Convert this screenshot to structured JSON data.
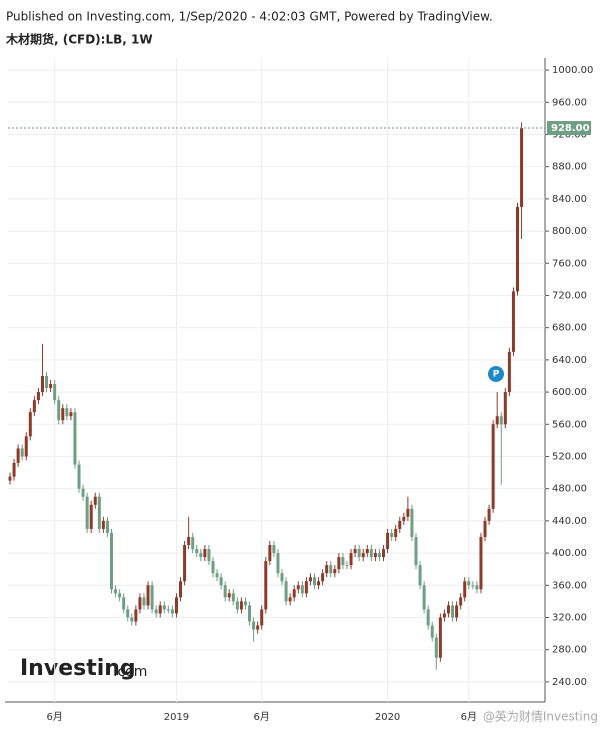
{
  "header": {
    "published": "Published on Investing.com, 1/Sep/2020 - 4:02:03 GMT, Powered by TradingView.",
    "symbol": "木材期货, (CFD):LB, 1W"
  },
  "chart_data": {
    "type": "candlestick",
    "categories": [
      null,
      null,
      null,
      null,
      null,
      null,
      null,
      null,
      null,
      null,
      null,
      "6月",
      null,
      null,
      null,
      null,
      null,
      null,
      null,
      null,
      null,
      null,
      null,
      null,
      null,
      null,
      null,
      null,
      null,
      null,
      null,
      null,
      null,
      null,
      null,
      null,
      null,
      null,
      null,
      null,
      null,
      "2019",
      null,
      null,
      null,
      null,
      null,
      null,
      null,
      null,
      null,
      null,
      null,
      null,
      null,
      null,
      null,
      null,
      null,
      null,
      null,
      null,
      "6月",
      null,
      null,
      null,
      null,
      null,
      null,
      null,
      null,
      null,
      null,
      null,
      null,
      null,
      null,
      null,
      null,
      null,
      null,
      null,
      null,
      null,
      null,
      null,
      null,
      null,
      null,
      null,
      null,
      null,
      null,
      "2020",
      null,
      null,
      null,
      null,
      null,
      null,
      null,
      null,
      null,
      null,
      null,
      null,
      null,
      null,
      null,
      null,
      null,
      null,
      null,
      "6月",
      null,
      null,
      null,
      null,
      null,
      null,
      null,
      null,
      null,
      null,
      null,
      null,
      null
    ],
    "open": [
      490,
      495,
      512,
      530,
      520,
      545,
      575,
      590,
      600,
      620,
      605,
      610,
      590,
      565,
      580,
      570,
      575,
      510,
      480,
      470,
      430,
      460,
      470,
      430,
      440,
      425,
      355,
      350,
      345,
      330,
      320,
      315,
      330,
      345,
      335,
      360,
      330,
      325,
      335,
      330,
      330,
      325,
      345,
      365,
      410,
      420,
      405,
      400,
      395,
      405,
      390,
      375,
      370,
      360,
      345,
      350,
      340,
      330,
      340,
      335,
      315,
      305,
      310,
      330,
      390,
      410,
      400,
      375,
      365,
      340,
      345,
      355,
      360,
      350,
      365,
      370,
      360,
      365,
      375,
      385,
      375,
      380,
      395,
      385,
      385,
      400,
      405,
      395,
      400,
      405,
      395,
      400,
      395,
      405,
      425,
      420,
      430,
      440,
      445,
      455,
      420,
      385,
      360,
      330,
      310,
      295,
      270,
      320,
      325,
      335,
      320,
      335,
      345,
      365,
      360,
      360,
      355,
      420,
      440,
      455,
      560,
      570,
      560,
      600,
      650,
      725,
      830
    ],
    "high": [
      500,
      517,
      535,
      535,
      550,
      580,
      595,
      605,
      660,
      625,
      615,
      615,
      595,
      585,
      585,
      580,
      580,
      515,
      485,
      475,
      465,
      475,
      475,
      445,
      445,
      430,
      360,
      355,
      350,
      335,
      325,
      335,
      350,
      350,
      365,
      365,
      335,
      340,
      340,
      335,
      335,
      350,
      370,
      415,
      445,
      425,
      410,
      405,
      410,
      410,
      395,
      380,
      375,
      365,
      355,
      355,
      345,
      345,
      345,
      340,
      320,
      315,
      335,
      395,
      415,
      415,
      405,
      380,
      370,
      350,
      360,
      365,
      365,
      370,
      375,
      375,
      370,
      380,
      390,
      390,
      385,
      400,
      400,
      390,
      405,
      410,
      410,
      405,
      410,
      410,
      405,
      405,
      410,
      430,
      430,
      435,
      445,
      450,
      470,
      460,
      425,
      390,
      365,
      335,
      315,
      300,
      325,
      330,
      340,
      340,
      340,
      350,
      370,
      370,
      365,
      365,
      425,
      445,
      460,
      565,
      600,
      575,
      605,
      655,
      730,
      835,
      935
    ],
    "low": [
      485,
      490,
      507,
      515,
      515,
      540,
      570,
      585,
      595,
      600,
      600,
      585,
      560,
      560,
      565,
      565,
      505,
      475,
      465,
      425,
      425,
      455,
      425,
      425,
      420,
      350,
      345,
      340,
      325,
      315,
      310,
      310,
      325,
      330,
      330,
      325,
      320,
      320,
      325,
      325,
      320,
      320,
      340,
      360,
      405,
      400,
      395,
      390,
      390,
      385,
      370,
      365,
      355,
      340,
      340,
      335,
      325,
      325,
      330,
      310,
      290,
      300,
      305,
      325,
      385,
      395,
      370,
      360,
      335,
      335,
      340,
      350,
      345,
      345,
      360,
      355,
      355,
      360,
      370,
      370,
      370,
      375,
      380,
      380,
      380,
      395,
      390,
      390,
      395,
      390,
      390,
      390,
      390,
      400,
      415,
      415,
      425,
      435,
      440,
      415,
      380,
      355,
      325,
      305,
      290,
      255,
      265,
      315,
      320,
      315,
      315,
      330,
      340,
      355,
      355,
      350,
      350,
      415,
      435,
      450,
      555,
      485,
      555,
      595,
      645,
      720,
      790
    ],
    "close": [
      495,
      512,
      530,
      520,
      545,
      575,
      590,
      600,
      620,
      605,
      610,
      590,
      565,
      580,
      570,
      575,
      510,
      480,
      470,
      430,
      460,
      470,
      430,
      440,
      425,
      355,
      350,
      345,
      330,
      320,
      315,
      330,
      345,
      335,
      360,
      330,
      325,
      335,
      330,
      330,
      325,
      345,
      365,
      410,
      420,
      405,
      400,
      395,
      405,
      390,
      375,
      370,
      360,
      345,
      350,
      340,
      330,
      340,
      335,
      315,
      305,
      310,
      330,
      390,
      410,
      400,
      375,
      365,
      340,
      345,
      355,
      360,
      350,
      365,
      370,
      360,
      365,
      375,
      385,
      375,
      380,
      395,
      385,
      385,
      400,
      405,
      395,
      400,
      405,
      395,
      400,
      395,
      405,
      425,
      420,
      430,
      440,
      445,
      455,
      420,
      385,
      360,
      330,
      310,
      295,
      270,
      320,
      325,
      335,
      320,
      335,
      345,
      365,
      360,
      360,
      355,
      420,
      440,
      455,
      560,
      570,
      560,
      600,
      650,
      725,
      830,
      928
    ],
    "up_color": "#8e3a2a",
    "down_color": "#6e9e84",
    "ylim": [
      215,
      1015
    ],
    "yticks": [
      {
        "value": 240,
        "label": "240.00"
      },
      {
        "value": 280,
        "label": "280.00"
      },
      {
        "value": 320,
        "label": "320.00"
      },
      {
        "value": 360,
        "label": "360.00"
      },
      {
        "value": 400,
        "label": "400.00"
      },
      {
        "value": 440,
        "label": "440.00"
      },
      {
        "value": 480,
        "label": "480.00"
      },
      {
        "value": 520,
        "label": "520.00"
      },
      {
        "value": 560,
        "label": "560.00"
      },
      {
        "value": 600,
        "label": "600.00"
      },
      {
        "value": 640,
        "label": "640.00"
      },
      {
        "value": 680,
        "label": "680.00"
      },
      {
        "value": 720,
        "label": "720.00"
      },
      {
        "value": 760,
        "label": "760.00"
      },
      {
        "value": 800,
        "label": "800.00"
      },
      {
        "value": 840,
        "label": "840.00"
      },
      {
        "value": 880,
        "label": "880.00"
      },
      {
        "value": 920,
        "label": "920.00"
      },
      {
        "value": 960,
        "label": "960.00"
      },
      {
        "value": 1000,
        "label": "1000.00"
      }
    ],
    "grid": true,
    "last_price": {
      "value": 928,
      "label": "928.00"
    },
    "marker_label": "P",
    "logo": {
      "main": "Investing",
      "suffix": ".com"
    },
    "watermark": "@英为财情Investing"
  }
}
